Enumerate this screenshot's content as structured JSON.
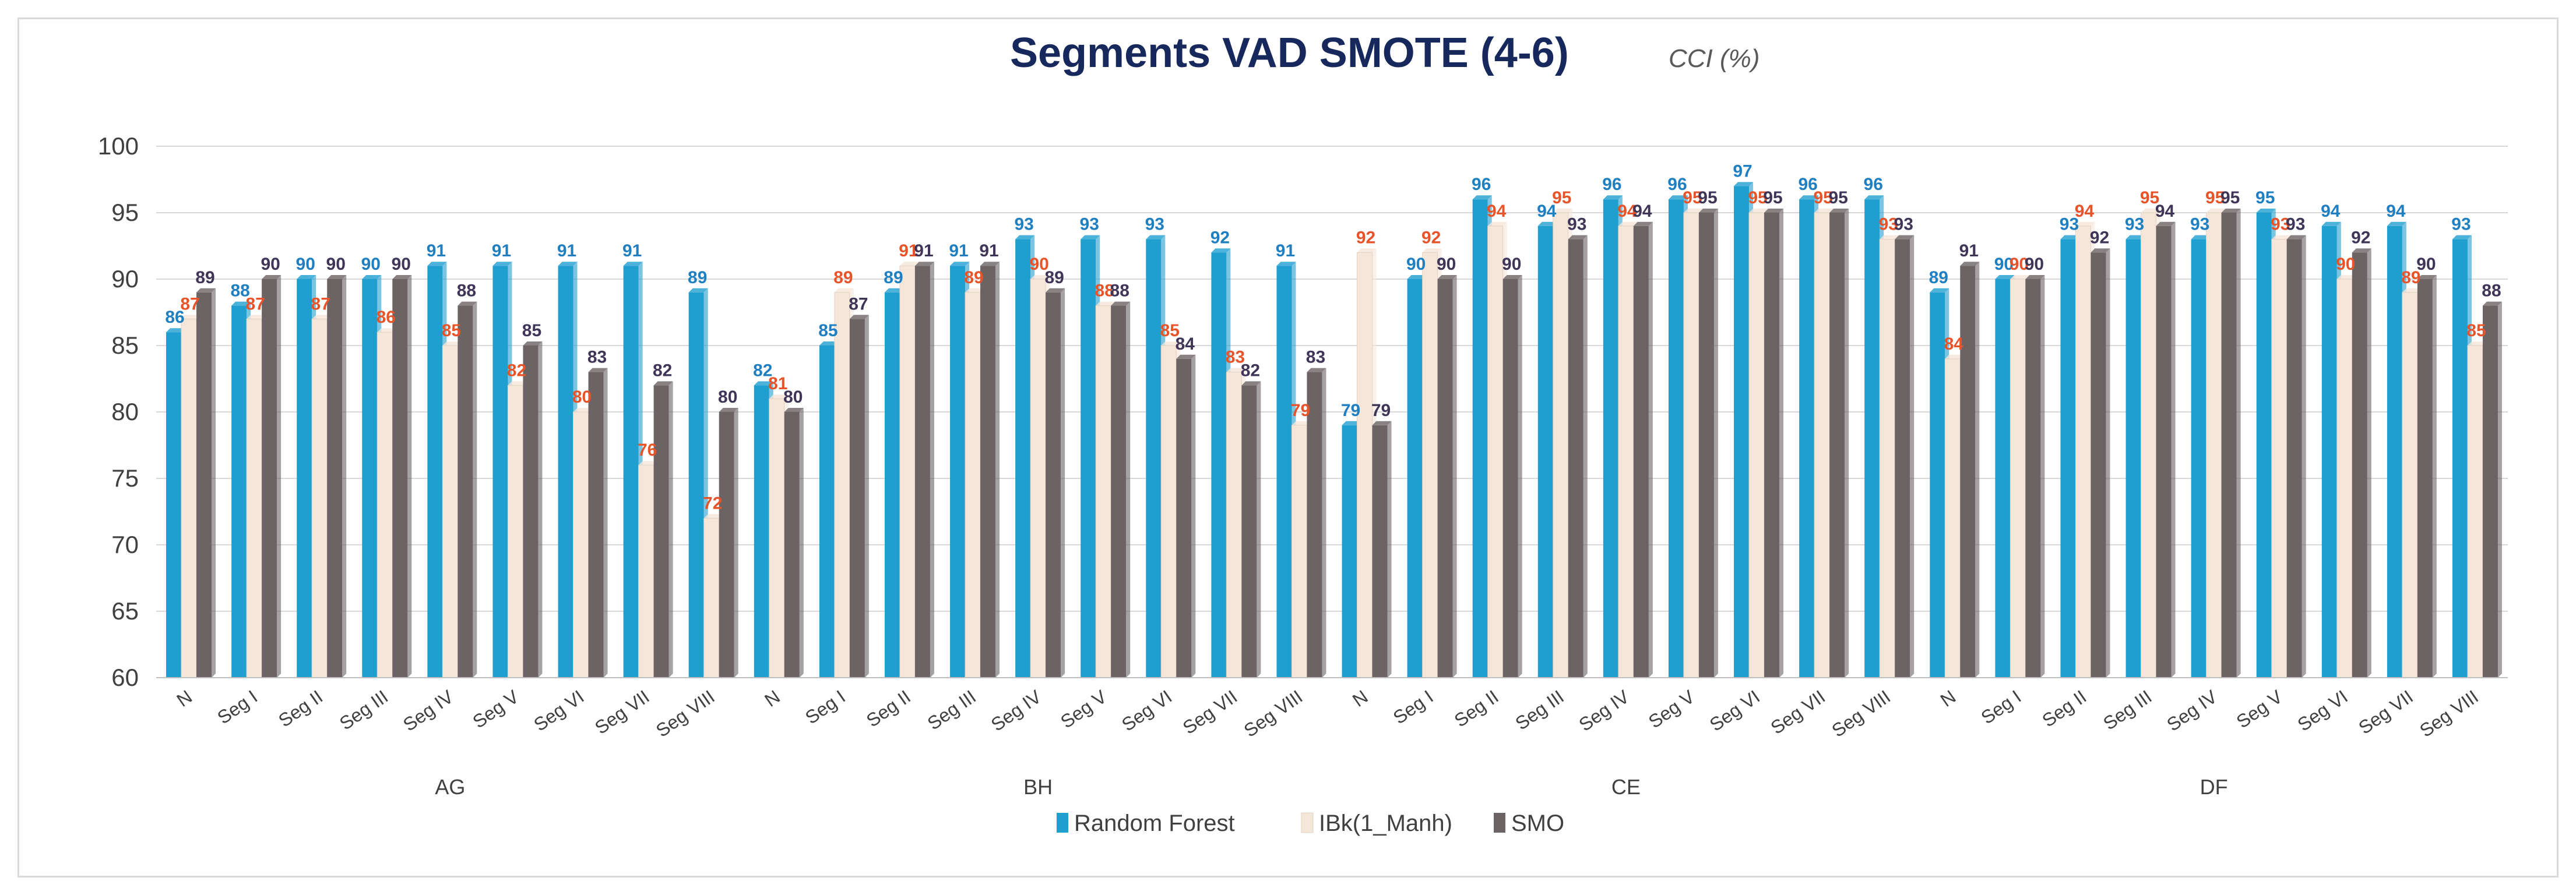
{
  "chart_data": {
    "type": "bar",
    "title": "Segments VAD SMOTE (4-6)",
    "subtitle": "CCI (%)",
    "ylim": [
      60,
      100
    ],
    "yticks": [
      60,
      65,
      70,
      75,
      80,
      85,
      90,
      95,
      100
    ],
    "grid": true,
    "legend_position": "bottom",
    "groups": [
      "AG",
      "BH",
      "CE",
      "DF"
    ],
    "categories": [
      "N",
      "Seg I",
      "Seg II",
      "Seg III",
      "Seg IV",
      "Seg V",
      "Seg VI",
      "Seg VII",
      "Seg VIII"
    ],
    "series": [
      {
        "name": "Random Forest",
        "color": "#1f9fd0",
        "label_color": "#1f7fc0",
        "values": [
          [
            86,
            88,
            90,
            90,
            91,
            91,
            91,
            91,
            89
          ],
          [
            82,
            85,
            89,
            91,
            93,
            93,
            93,
            92,
            91
          ],
          [
            79,
            90,
            96,
            94,
            96,
            96,
            97,
            96,
            96
          ],
          [
            89,
            90,
            93,
            93,
            93,
            95,
            94,
            94,
            93
          ]
        ]
      },
      {
        "name": "IBk(1_Manh)",
        "color": "#f5e6da",
        "label_color": "#e8542a",
        "values": [
          [
            87,
            87,
            87,
            86,
            85,
            82,
            80,
            76,
            72
          ],
          [
            81,
            89,
            91,
            89,
            90,
            88,
            85,
            83,
            79
          ],
          [
            92,
            92,
            94,
            95,
            94,
            95,
            95,
            95,
            93
          ],
          [
            84,
            90,
            94,
            95,
            95,
            93,
            90,
            89,
            85
          ]
        ]
      },
      {
        "name": "SMO",
        "color": "#6b6364",
        "label_color": "#3f3559",
        "values": [
          [
            89,
            90,
            90,
            90,
            88,
            85,
            83,
            82,
            80
          ],
          [
            80,
            87,
            91,
            91,
            89,
            88,
            84,
            82,
            83
          ],
          [
            79,
            90,
            90,
            93,
            94,
            95,
            95,
            95,
            93
          ],
          [
            91,
            90,
            92,
            94,
            95,
            93,
            92,
            90,
            88
          ]
        ]
      }
    ]
  }
}
